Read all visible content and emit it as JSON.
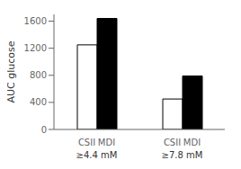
{
  "chart_data": {
    "type": "bar",
    "categories": [
      "≥4.4 mM",
      "≥7.8 mM"
    ],
    "series": [
      {
        "name": "CSII",
        "color": "#ffffff",
        "values": [
          1250,
          450
        ]
      },
      {
        "name": "MDI",
        "color": "#000000",
        "values": [
          1640,
          790
        ]
      }
    ],
    "ylabel": "AUC glucose",
    "ylim": [
      0,
      1700
    ],
    "yticks": [
      0,
      400,
      800,
      1200,
      1600
    ],
    "grid": false
  }
}
